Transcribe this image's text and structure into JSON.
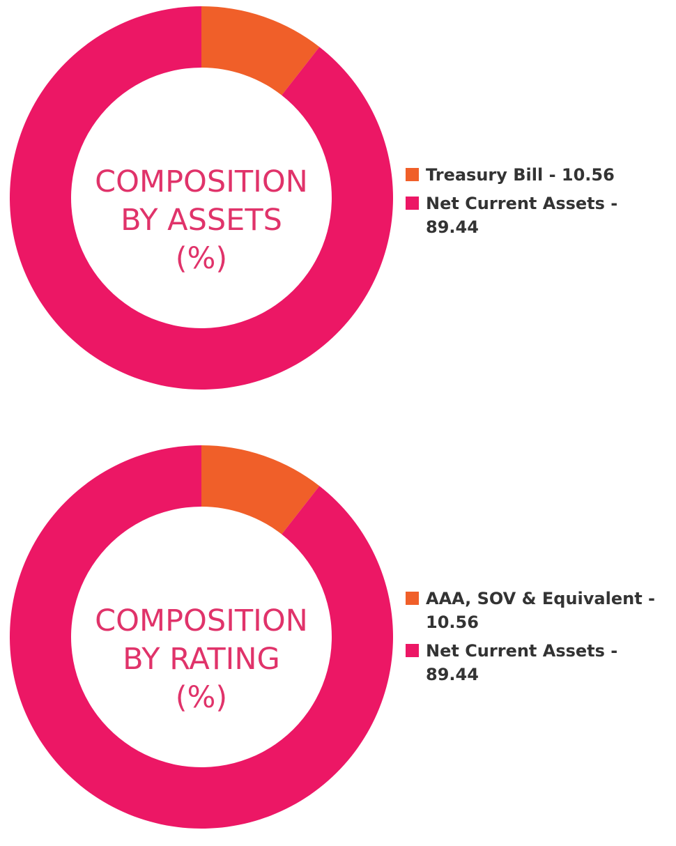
{
  "colors": {
    "treasury": "#f05f29",
    "net_current": "#ec1765",
    "label": "#e0336a"
  },
  "chart_data": [
    {
      "type": "pie",
      "donut": true,
      "center_title": [
        "COMPOSITION",
        "BY ASSETS",
        "(%)"
      ],
      "legend_position": "right",
      "slices": [
        {
          "label": "Treasury Bill - 10.56",
          "value": 10.56,
          "color": "#f05f29"
        },
        {
          "label": "Net Current Assets - 89.44",
          "value": 89.44,
          "color": "#ec1765"
        }
      ]
    },
    {
      "type": "pie",
      "donut": true,
      "center_title": [
        "COMPOSITION",
        "BY RATING",
        "(%)"
      ],
      "legend_position": "right",
      "slices": [
        {
          "label": "AAA, SOV & Equivalent - 10.56",
          "value": 10.56,
          "color": "#f05f29"
        },
        {
          "label": "Net Current Assets - 89.44",
          "value": 89.44,
          "color": "#ec1765"
        }
      ]
    }
  ]
}
